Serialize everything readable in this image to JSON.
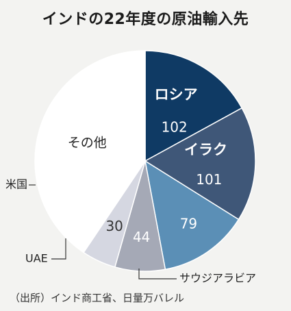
{
  "chart_data": {
    "type": "pie",
    "title": "インドの22年度の原油輸入先",
    "source": "（出所）インド商工省、日量万バレル",
    "categories": [
      "ロシア",
      "イラク",
      "サウジアラビア",
      "UAE",
      "米国",
      "その他"
    ],
    "values": [
      102,
      101,
      79,
      44,
      30,
      243
    ],
    "slices": [
      {
        "name": "ロシア",
        "value": 102,
        "value_label": "102",
        "color": "#0f3a64",
        "text_color": "#ffffff",
        "bold": true,
        "label_position": "inside"
      },
      {
        "name": "イラク",
        "value": 101,
        "value_label": "101",
        "color": "#3f5778",
        "text_color": "#ffffff",
        "bold": true,
        "label_position": "inside"
      },
      {
        "name": "サウジアラビア",
        "value": 79,
        "value_label": "79",
        "color": "#5b8fb6",
        "text_color": "#ffffff",
        "bold": false,
        "label_position": "outside"
      },
      {
        "name": "UAE",
        "value": 44,
        "value_label": "44",
        "color": "#a5a9b6",
        "text_color": "#ffffff",
        "bold": false,
        "label_position": "outside"
      },
      {
        "name": "米国",
        "value": 30,
        "value_label": "30",
        "color": "#d5d7e1",
        "text_color": "#333333",
        "bold": false,
        "label_position": "outside"
      },
      {
        "name": "その他",
        "value": 243,
        "value_label": "",
        "color": "#ffffff",
        "text_color": "#222222",
        "bold": false,
        "label_position": "inside"
      }
    ],
    "start_angle": "12 o'clock",
    "direction": "clockwise",
    "legend": "none"
  }
}
